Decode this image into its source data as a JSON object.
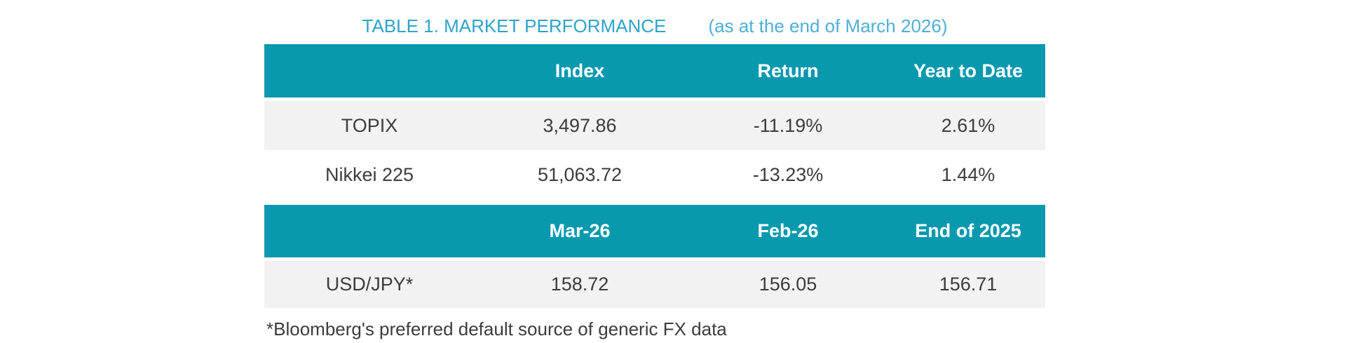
{
  "title": {
    "main": "TABLE 1. MARKET PERFORMANCE",
    "sub": "(as at the end of March 2026)"
  },
  "colors": {
    "header_bg": "#0999AE",
    "row_alt_bg": "#F2F2F2",
    "title_main": "#2EA3C9",
    "title_sub": "#4FAFD5",
    "text": "#3C3C3C",
    "header_text": "#FFFFFF"
  },
  "chart_data": {
    "type": "table",
    "title": "TABLE 1. MARKET PERFORMANCE (as at the end of March 2026)",
    "sections": [
      {
        "headers": [
          "",
          "Index",
          "Return",
          "Year to Date"
        ],
        "rows": [
          {
            "label": "TOPIX",
            "values": [
              "3,497.86",
              "-11.19%",
              "2.61%"
            ]
          },
          {
            "label": "Nikkei 225",
            "values": [
              "51,063.72",
              "-13.23%",
              "1.44%"
            ]
          }
        ]
      },
      {
        "headers": [
          "",
          "Mar-26",
          "Feb-26",
          "End of 2025"
        ],
        "rows": [
          {
            "label": "USD/JPY*",
            "values": [
              "158.72",
              "156.05",
              "156.71"
            ]
          }
        ]
      }
    ]
  },
  "footnote": "*Bloomberg's preferred default source of generic FX data"
}
